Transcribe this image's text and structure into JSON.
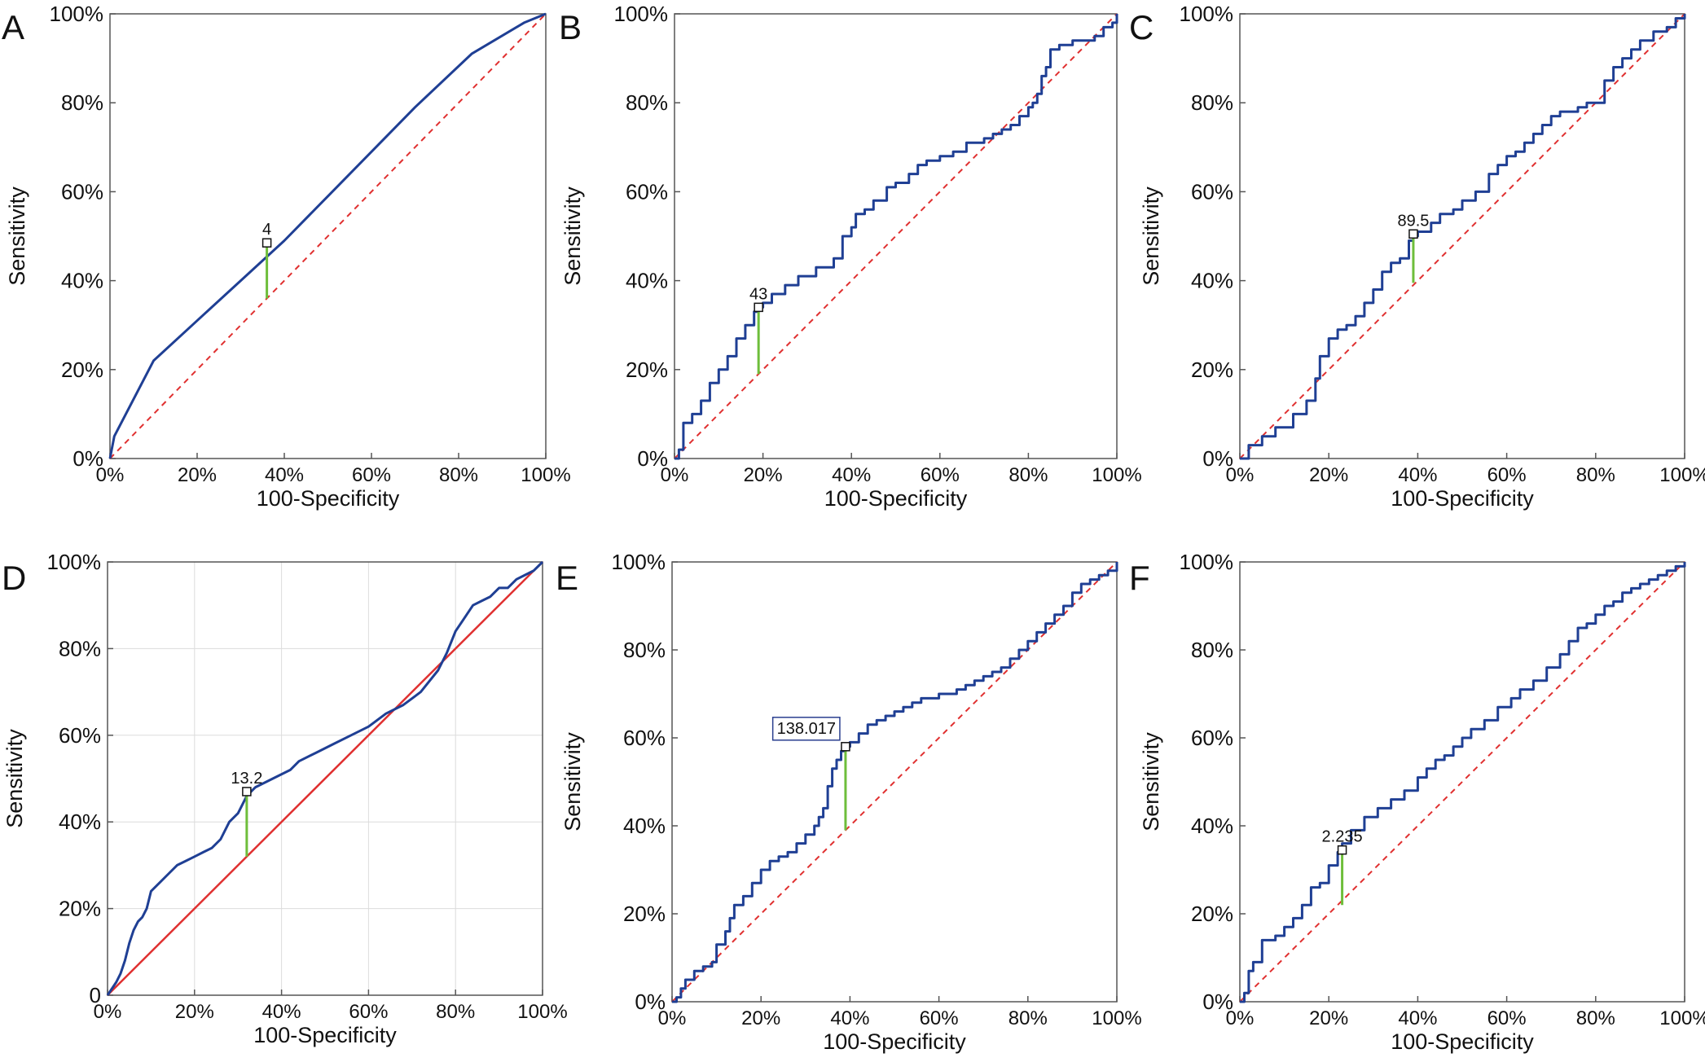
{
  "chart_data": [
    {
      "panel": "A",
      "type": "line",
      "xlabel": "100-Specificity",
      "ylabel": "Sensitivity",
      "xticks": [
        "0%",
        "20%",
        "40%",
        "60%",
        "80%",
        "100%"
      ],
      "yticks": [
        "0%",
        "20%",
        "40%",
        "60%",
        "80%",
        "100%"
      ],
      "xlim": [
        0,
        100
      ],
      "ylim": [
        0,
        100
      ],
      "grid": false,
      "series": [
        {
          "color": "#1f3f94",
          "step": false,
          "x": [
            0,
            1,
            10,
            20,
            30,
            40,
            50,
            60,
            70,
            83,
            95,
            100
          ],
          "y": [
            0,
            5,
            22,
            31,
            40,
            49,
            59,
            69,
            79,
            91,
            98,
            100
          ]
        }
      ],
      "reference_line": {
        "color": "#e03030",
        "style": "dashed"
      },
      "cutoff": {
        "label": "4",
        "x": 36,
        "y": 48.5,
        "y_ref": 36,
        "boxed_label": false,
        "color": "#6ebe3b"
      }
    },
    {
      "panel": "B",
      "type": "line",
      "xlabel": "100-Specificity",
      "ylabel": "Sensitivity",
      "xticks": [
        "0%",
        "20%",
        "40%",
        "60%",
        "80%",
        "100%"
      ],
      "yticks": [
        "0%",
        "20%",
        "40%",
        "60%",
        "80%",
        "100%"
      ],
      "xlim": [
        0,
        100
      ],
      "ylim": [
        0,
        100
      ],
      "grid": false,
      "series": [
        {
          "color": "#1f3f94",
          "step": true,
          "x": [
            0,
            1,
            2,
            4,
            6,
            8,
            10,
            12,
            14,
            16,
            18,
            19,
            20,
            22,
            25,
            28,
            32,
            36,
            38,
            40,
            41,
            43,
            45,
            48,
            50,
            53,
            55,
            57,
            60,
            63,
            66,
            70,
            72,
            74,
            76,
            78,
            80,
            81,
            82,
            83,
            84,
            85,
            87,
            90,
            92,
            95,
            97,
            98,
            99,
            100
          ],
          "y": [
            0,
            2,
            8,
            10,
            13,
            17,
            20,
            23,
            27,
            30,
            33,
            34,
            35,
            37,
            39,
            41,
            43,
            45,
            50,
            52,
            55,
            56,
            58,
            61,
            62,
            64,
            66,
            67,
            68,
            69,
            71,
            72,
            73,
            74,
            75,
            77,
            79,
            80,
            82,
            86,
            88,
            92,
            93,
            94,
            94,
            95,
            97,
            97,
            98,
            100
          ]
        }
      ],
      "reference_line": {
        "color": "#e03030",
        "style": "dashed"
      },
      "cutoff": {
        "label": "43",
        "x": 19,
        "y": 34,
        "y_ref": 19,
        "boxed_label": false,
        "color": "#6ebe3b"
      }
    },
    {
      "panel": "C",
      "type": "line",
      "xlabel": "100-Specificity",
      "ylabel": "Sensitivity",
      "xticks": [
        "0%",
        "20%",
        "40%",
        "60%",
        "80%",
        "100%"
      ],
      "yticks": [
        "0%",
        "20%",
        "40%",
        "60%",
        "80%",
        "100%"
      ],
      "xlim": [
        0,
        100
      ],
      "ylim": [
        0,
        100
      ],
      "grid": false,
      "series": [
        {
          "color": "#1f3f94",
          "step": true,
          "x": [
            0,
            2,
            5,
            8,
            12,
            15,
            17,
            18,
            20,
            22,
            24,
            26,
            28,
            30,
            32,
            34,
            36,
            38,
            39,
            40,
            43,
            45,
            48,
            50,
            53,
            56,
            58,
            60,
            62,
            64,
            66,
            68,
            70,
            72,
            74,
            76,
            78,
            80,
            82,
            84,
            86,
            88,
            90,
            93,
            96,
            98,
            100
          ],
          "y": [
            0,
            3,
            5,
            7,
            10,
            13,
            18,
            23,
            27,
            29,
            30,
            32,
            35,
            38,
            42,
            44,
            45,
            49,
            50,
            51,
            53,
            55,
            56,
            58,
            60,
            64,
            66,
            68,
            69,
            71,
            73,
            75,
            77,
            78,
            78,
            79,
            80,
            80,
            85,
            88,
            90,
            92,
            94,
            96,
            97,
            99,
            100
          ]
        }
      ],
      "reference_line": {
        "color": "#e03030",
        "style": "dashed"
      },
      "cutoff": {
        "label": "89.5",
        "x": 39,
        "y": 50.5,
        "y_ref": 39.5,
        "boxed_label": false,
        "color": "#6ebe3b"
      }
    },
    {
      "panel": "D",
      "type": "line",
      "xlabel": "100-Specificity",
      "ylabel": "Sensitivity",
      "xticks": [
        "0%",
        "20%",
        "40%",
        "60%",
        "80%",
        "100%"
      ],
      "yticks": [
        "0",
        "20%",
        "40%",
        "60%",
        "80%",
        "100%"
      ],
      "xlim": [
        0,
        100
      ],
      "ylim": [
        0,
        100
      ],
      "grid": true,
      "series": [
        {
          "color": "#1f3f94",
          "step": false,
          "x": [
            0,
            2,
            3,
            4,
            5,
            6,
            7,
            8,
            9,
            10,
            12,
            14,
            16,
            18,
            20,
            22,
            24,
            26,
            28,
            30,
            32,
            34,
            38,
            42,
            44,
            48,
            52,
            56,
            60,
            64,
            68,
            72,
            76,
            78,
            80,
            82,
            84,
            86,
            88,
            90,
            92,
            94,
            96,
            98,
            100
          ],
          "y": [
            0,
            3,
            5,
            8,
            12,
            15,
            17,
            18,
            20,
            24,
            26,
            28,
            30,
            31,
            32,
            33,
            34,
            36,
            40,
            42,
            46,
            48,
            50,
            52,
            54,
            56,
            58,
            60,
            62,
            65,
            67,
            70,
            75,
            79,
            84,
            87,
            90,
            91,
            92,
            94,
            94,
            96,
            97,
            98,
            100
          ]
        }
      ],
      "reference_line": {
        "color": "#e03030",
        "style": "solid"
      },
      "cutoff": {
        "label": "13.2",
        "x": 32,
        "y": 47,
        "y_ref": 32,
        "boxed_label": false,
        "color": "#6ebe3b"
      }
    },
    {
      "panel": "E",
      "type": "line",
      "xlabel": "100-Specificity",
      "ylabel": "Sensitivity",
      "xticks": [
        "0%",
        "20%",
        "40%",
        "60%",
        "80%",
        "100%"
      ],
      "yticks": [
        "0%",
        "20%",
        "40%",
        "60%",
        "80%",
        "100%"
      ],
      "xlim": [
        0,
        100
      ],
      "ylim": [
        0,
        100
      ],
      "grid": false,
      "series": [
        {
          "color": "#1f3f94",
          "step": true,
          "x": [
            0,
            1,
            2,
            3,
            5,
            7,
            9,
            10,
            12,
            13,
            14,
            16,
            18,
            20,
            22,
            24,
            26,
            28,
            30,
            32,
            33,
            34,
            35,
            36,
            37,
            38,
            39,
            40,
            42,
            44,
            46,
            48,
            50,
            52,
            54,
            56,
            60,
            64,
            66,
            68,
            70,
            72,
            74,
            76,
            78,
            80,
            82,
            84,
            86,
            88,
            90,
            92,
            94,
            96,
            98,
            100
          ],
          "y": [
            0,
            1,
            3,
            5,
            7,
            8,
            9,
            13,
            16,
            19,
            22,
            24,
            27,
            30,
            32,
            33,
            34,
            36,
            38,
            40,
            42,
            44,
            49,
            53,
            55,
            57,
            58,
            59,
            61,
            63,
            64,
            65,
            66,
            67,
            68,
            69,
            70,
            71,
            72,
            73,
            74,
            75,
            76,
            78,
            80,
            82,
            84,
            86,
            88,
            90,
            93,
            95,
            96,
            97,
            98,
            100
          ]
        }
      ],
      "reference_line": {
        "color": "#e03030",
        "style": "dashed"
      },
      "cutoff": {
        "label": "138.017",
        "x": 39,
        "y": 58,
        "y_ref": 39,
        "boxed_label": true,
        "color": "#6ebe3b"
      }
    },
    {
      "panel": "F",
      "type": "line",
      "xlabel": "100-Specificity",
      "ylabel": "Sensitivity",
      "xticks": [
        "0%",
        "20%",
        "40%",
        "60%",
        "80%",
        "100%"
      ],
      "yticks": [
        "0%",
        "20%",
        "40%",
        "60%",
        "80%",
        "100%"
      ],
      "xlim": [
        0,
        100
      ],
      "ylim": [
        0,
        100
      ],
      "grid": false,
      "series": [
        {
          "color": "#1f3f94",
          "step": true,
          "x": [
            0,
            1,
            2,
            3,
            5,
            8,
            10,
            12,
            14,
            16,
            18,
            20,
            22,
            23,
            25,
            28,
            31,
            34,
            37,
            40,
            42,
            44,
            46,
            48,
            50,
            52,
            55,
            58,
            61,
            63,
            66,
            69,
            72,
            74,
            76,
            78,
            80,
            82,
            84,
            86,
            88,
            90,
            92,
            94,
            96,
            98,
            100
          ],
          "y": [
            0,
            2,
            7,
            9,
            14,
            15,
            17,
            19,
            22,
            26,
            27,
            31,
            34,
            36,
            39,
            42,
            44,
            46,
            48,
            51,
            53,
            55,
            56,
            58,
            60,
            62,
            64,
            67,
            69,
            71,
            73,
            76,
            79,
            82,
            85,
            86,
            88,
            90,
            91,
            93,
            94,
            95,
            96,
            97,
            98,
            99,
            100
          ]
        }
      ],
      "reference_line": {
        "color": "#e03030",
        "style": "dashed"
      },
      "cutoff": {
        "label": "2.235",
        "x": 23,
        "y": 34.5,
        "y_ref": 22,
        "boxed_label": false,
        "color": "#6ebe3b"
      }
    }
  ]
}
